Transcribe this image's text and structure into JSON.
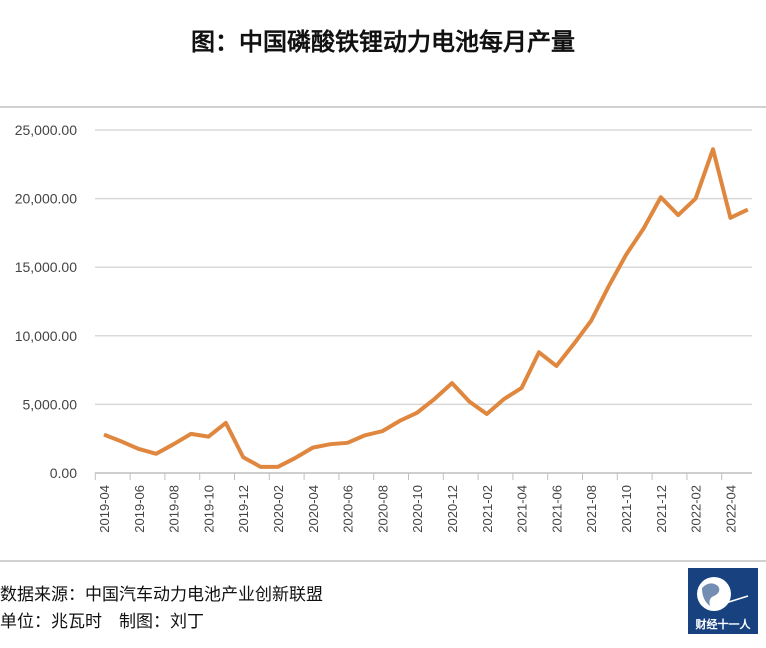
{
  "title": "图：中国磷酸铁锂动力电池每月产量",
  "footer": {
    "source": "数据来源：中国汽车动力电池产业创新联盟",
    "unit": "单位：兆瓦时　制图：刘丁"
  },
  "logo_text": "财经十一人",
  "chart_data": {
    "type": "line",
    "title": "图：中国磷酸铁锂动力电池每月产量",
    "color": "#e0873f",
    "ylim": [
      0,
      25000
    ],
    "yticks": [
      "0.00",
      "5,000.00",
      "10,000.00",
      "15,000.00",
      "20,000.00",
      "25,000.00"
    ],
    "grid": true,
    "x": [
      "2019-04",
      "2019-05",
      "2019-06",
      "2019-07",
      "2019-08",
      "2019-09",
      "2019-10",
      "2019-11",
      "2019-12",
      "2020-01",
      "2020-02",
      "2020-03",
      "2020-04",
      "2020-05",
      "2020-06",
      "2020-07",
      "2020-08",
      "2020-09",
      "2020-10",
      "2020-11",
      "2020-12",
      "2021-01",
      "2021-02",
      "2021-03",
      "2021-04",
      "2021-05",
      "2021-06",
      "2021-07",
      "2021-08",
      "2021-09",
      "2021-10",
      "2021-11",
      "2021-12",
      "2022-01",
      "2022-02",
      "2022-03",
      "2022-04",
      "2022-05"
    ],
    "values": [
      2800,
      2300,
      1750,
      1400,
      2100,
      2850,
      2650,
      3650,
      1150,
      450,
      450,
      1100,
      1850,
      2100,
      2200,
      2750,
      3050,
      3800,
      4400,
      5400,
      6550,
      5200,
      4300,
      5400,
      6200,
      8800,
      7800,
      9400,
      11100,
      13600,
      15900,
      17800,
      20100,
      18800,
      20000,
      23600,
      18600,
      19200
    ]
  }
}
